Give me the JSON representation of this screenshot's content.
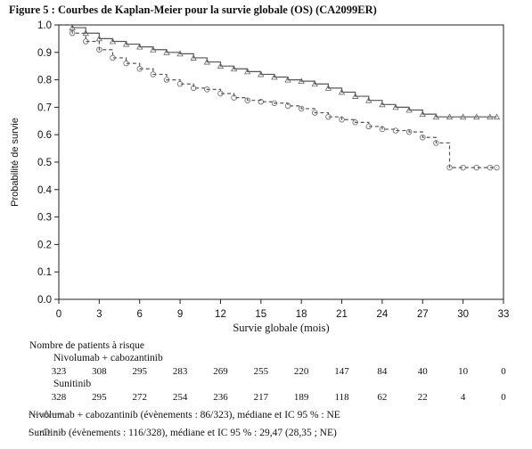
{
  "figure_title": "Figure 5 : Courbes de Kaplan-Meier pour la survie globale (OS) (CA2099ER)",
  "chart_data": {
    "type": "line",
    "subtype": "kaplan-meier",
    "xlabel": "Survie globale (mois)",
    "ylabel": "Probabilité de survie",
    "xlim": [
      0,
      33
    ],
    "ylim": [
      0.0,
      1.0
    ],
    "xticks": [
      "0",
      "3",
      "6",
      "9",
      "12",
      "15",
      "18",
      "21",
      "24",
      "27",
      "30",
      "33"
    ],
    "yticks": [
      "0.0",
      "0.1",
      "0.2",
      "0.3",
      "0.4",
      "0.5",
      "0.6",
      "0.7",
      "0.8",
      "0.9",
      "1.0"
    ],
    "grid": false,
    "series": [
      {
        "name": "Nivolumab + cabozantinib",
        "color": "#555555",
        "dash": "solid",
        "marker": "triangle",
        "x": [
          0,
          1,
          2,
          3,
          4,
          5,
          6,
          7,
          8,
          9,
          10,
          11,
          12,
          13,
          14,
          15,
          16,
          17,
          18,
          19,
          20,
          21,
          22,
          23,
          24,
          25,
          26,
          27,
          28,
          29,
          30,
          31,
          32,
          32.5
        ],
        "y": [
          1.0,
          0.99,
          0.97,
          0.95,
          0.94,
          0.93,
          0.92,
          0.91,
          0.9,
          0.895,
          0.88,
          0.865,
          0.85,
          0.84,
          0.83,
          0.82,
          0.81,
          0.8,
          0.795,
          0.785,
          0.77,
          0.755,
          0.74,
          0.725,
          0.71,
          0.7,
          0.69,
          0.675,
          0.665,
          0.665,
          0.665,
          0.665,
          0.665,
          0.665
        ]
      },
      {
        "name": "Sunitinib",
        "color": "#555555",
        "dash": "dashed",
        "marker": "circle",
        "x": [
          0,
          1,
          2,
          3,
          4,
          5,
          6,
          7,
          8,
          9,
          10,
          11,
          12,
          13,
          14,
          15,
          16,
          17,
          18,
          19,
          20,
          21,
          22,
          23,
          24,
          25,
          26,
          27,
          28,
          29,
          30,
          31,
          32,
          32.5
        ],
        "y": [
          1.0,
          0.97,
          0.94,
          0.91,
          0.88,
          0.86,
          0.84,
          0.82,
          0.8,
          0.785,
          0.77,
          0.765,
          0.75,
          0.735,
          0.725,
          0.72,
          0.715,
          0.705,
          0.695,
          0.68,
          0.665,
          0.655,
          0.645,
          0.63,
          0.62,
          0.615,
          0.61,
          0.59,
          0.57,
          0.48,
          0.48,
          0.48,
          0.48,
          0.48
        ]
      }
    ]
  },
  "risk_table": {
    "title": "Nombre de patients à risque",
    "timepoints": [
      0,
      3,
      6,
      9,
      12,
      15,
      18,
      21,
      24,
      27,
      30,
      33
    ],
    "groups": [
      {
        "label": "Nivolumab + cabozantinib",
        "counts": [
          "323",
          "308",
          "295",
          "283",
          "269",
          "255",
          "220",
          "147",
          "84",
          "40",
          "10",
          "0"
        ]
      },
      {
        "label": "Sunitinib",
        "counts": [
          "328",
          "295",
          "272",
          "254",
          "236",
          "217",
          "189",
          "118",
          "62",
          "22",
          "4",
          "0"
        ]
      }
    ]
  },
  "legend": [
    {
      "marker": "triangle",
      "text": "Nivolumab + cabozantinib (évènements : 86/323), médiane et IC 95 % : NE"
    },
    {
      "marker": "circle",
      "text": "Sunitinib (évènements : 116/328), médiane et IC 95 % : 29,47 (28,35 ; NE)"
    }
  ]
}
